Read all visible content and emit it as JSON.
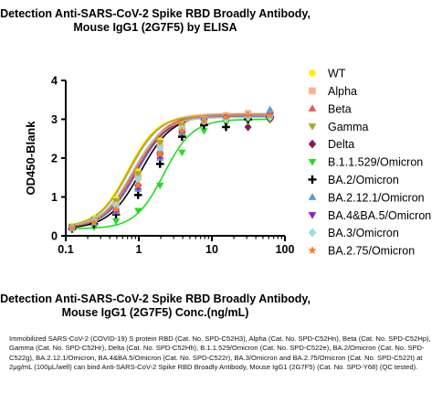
{
  "chart_data": {
    "type": "line",
    "title_lines": [
      "Detection Anti-SARS-CoV-2 Spike RBD Broadly Antibody,",
      "Mouse IgG1 (2G7F5) by ELISA"
    ],
    "title": "Detection Anti-SARS-CoV-2 Spike RBD Broadly Antibody, Mouse IgG1 (2G7F5) by ELISA",
    "xlabel_lines": [
      "Detection Anti-SARS-CoV-2 Spike RBD Broadly Antibody,",
      "Mouse IgG1 (2G7F5) Conc.(ng/mL)"
    ],
    "xlabel": "Detection Anti-SARS-CoV-2 Spike RBD Broadly Antibody, Mouse IgG1 (2G7F5) Conc.(ng/mL)",
    "ylabel": "OD450-Blank",
    "xscale": "log",
    "xlim": [
      0.1,
      100
    ],
    "ylim": [
      0,
      4
    ],
    "x_ticks": [
      {
        "value": 0.1,
        "label": "0.1"
      },
      {
        "value": 1,
        "label": "1"
      },
      {
        "value": 10,
        "label": "10"
      },
      {
        "value": 100,
        "label": "100"
      }
    ],
    "y_ticks": [
      {
        "value": 0,
        "label": "0"
      },
      {
        "value": 1,
        "label": "1"
      },
      {
        "value": 2,
        "label": "2"
      },
      {
        "value": 3,
        "label": "3"
      },
      {
        "value": 4,
        "label": "4"
      }
    ],
    "x": [
      0.122,
      0.244,
      0.488,
      0.977,
      1.953,
      3.906,
      7.8125,
      15.625,
      31.25,
      62.5
    ],
    "legend_position": "right",
    "series": [
      {
        "name": "WT",
        "color": "#ffee00",
        "marker": "circle",
        "ec50": 0.7,
        "top": 3.12,
        "bottom": 0.22,
        "hill": 2.1,
        "values": [
          0.25,
          0.45,
          0.95,
          1.65,
          2.45,
          2.85,
          3.0,
          3.1,
          3.05,
          3.05
        ]
      },
      {
        "name": "Alpha",
        "color": "#f5b38a",
        "marker": "square",
        "ec50": 0.75,
        "top": 3.15,
        "bottom": 0.2,
        "hill": 2.0,
        "values": [
          0.22,
          0.4,
          0.85,
          1.55,
          2.35,
          2.8,
          3.0,
          3.1,
          3.15,
          3.1
        ]
      },
      {
        "name": "Beta",
        "color": "#ee5555",
        "marker": "triangle-up",
        "ec50": 0.85,
        "top": 3.12,
        "bottom": 0.2,
        "hill": 2.0,
        "values": [
          0.2,
          0.35,
          0.7,
          1.35,
          2.2,
          2.75,
          2.95,
          3.05,
          3.1,
          3.1
        ]
      },
      {
        "name": "Gamma",
        "color": "#a8a828",
        "marker": "triangle-down",
        "ec50": 0.72,
        "top": 3.1,
        "bottom": 0.22,
        "hill": 2.1,
        "values": [
          0.24,
          0.42,
          0.9,
          1.6,
          2.4,
          2.85,
          3.0,
          3.05,
          3.05,
          3.05
        ]
      },
      {
        "name": "Delta",
        "color": "#8b1a4a",
        "marker": "diamond",
        "ec50": 0.95,
        "top": 3.1,
        "bottom": 0.2,
        "hill": 2.0,
        "values": [
          0.2,
          0.32,
          0.62,
          1.2,
          2.0,
          2.65,
          2.95,
          3.05,
          2.8,
          3.0
        ]
      },
      {
        "name": "B.1.1.529/Omicron",
        "color": "#22dd22",
        "marker": "triangle-down",
        "ec50": 2.2,
        "top": 3.0,
        "bottom": 0.18,
        "hill": 2.2,
        "values": [
          0.2,
          0.22,
          0.38,
          0.65,
          1.3,
          2.15,
          2.7,
          2.9,
          2.95,
          3.0
        ]
      },
      {
        "name": "BA.2/Omicron",
        "color": "#000000",
        "marker": "plus",
        "ec50": 1.05,
        "top": 3.1,
        "bottom": 0.18,
        "hill": 2.0,
        "values": [
          0.18,
          0.3,
          0.55,
          1.05,
          1.85,
          2.55,
          2.85,
          2.8,
          3.0,
          3.05
        ]
      },
      {
        "name": "BA.2.12.1/Omicron",
        "color": "#5b9bd5",
        "marker": "triangle-up",
        "ec50": 0.95,
        "top": 3.12,
        "bottom": 0.2,
        "hill": 2.0,
        "values": [
          0.2,
          0.33,
          0.62,
          1.2,
          2.0,
          2.65,
          2.95,
          3.05,
          3.1,
          3.25
        ]
      },
      {
        "name": "BA.4&BA.5/Omicron",
        "color": "#8822cc",
        "marker": "triangle-down",
        "ec50": 0.9,
        "top": 3.08,
        "bottom": 0.2,
        "hill": 2.0,
        "values": [
          0.2,
          0.34,
          0.65,
          1.25,
          2.05,
          2.7,
          2.95,
          3.0,
          3.05,
          3.1
        ]
      },
      {
        "name": "BA.3/Omicron",
        "color": "#99dddd",
        "marker": "diamond",
        "ec50": 0.8,
        "top": 3.05,
        "bottom": 0.2,
        "hill": 2.0,
        "values": [
          0.21,
          0.38,
          0.78,
          1.45,
          2.25,
          2.75,
          2.95,
          3.0,
          3.05,
          3.05
        ]
      },
      {
        "name": "BA.2.75/Omicron",
        "color": "#f08030",
        "marker": "star",
        "ec50": 0.88,
        "top": 3.1,
        "bottom": 0.2,
        "hill": 2.0,
        "values": [
          0.2,
          0.35,
          0.68,
          1.3,
          2.1,
          2.7,
          2.95,
          3.05,
          3.1,
          3.1
        ]
      }
    ]
  },
  "footnote": "Immobilized SARS-CoV-2 (COVID-19) S protein RBD (Cat. No. SPD-C52H3), Alpha (Cat. No. SPD-C52Hn), Beta (Cat. No. SPD-C52Hp), Gamma (Cat. No. SPD-C52Hr), Delta (Cat. No. SPD-C52Hh), B.1.1.529/Omicron (Cat. No. SPD-C522e), BA.2/Omicron (Cat. No. SPD-C522g), BA.2.12.1/Omicron, BA.4&BA.5/Omicron (Cat. No. SPD-C522r), BA.3/Omicron and BA.2.75/Omicron (Cat. No. SPD-C522t) at 2μg/mL (100μL/well) can bind Anti-SARS-CoV-2 Spike RBD Broadly Antibody, Mouse IgG1 (2G7F5) (Cat. No. SPD-Y68) (QC tested)."
}
